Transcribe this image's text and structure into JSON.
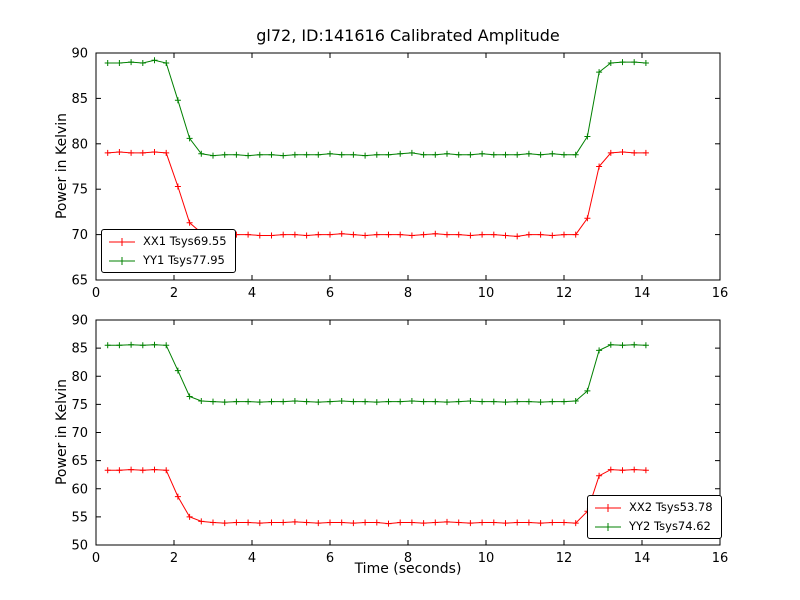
{
  "figure": {
    "title": "gl72, ID:141616 Calibrated Amplitude"
  },
  "chart_data": [
    {
      "type": "line",
      "title": "gl72, ID:141616 Calibrated Amplitude",
      "xlabel": "",
      "ylabel": "Power in Kelvin",
      "xlim": [
        0,
        16
      ],
      "ylim": [
        65,
        90
      ],
      "xticks": [
        0,
        2,
        4,
        6,
        8,
        10,
        12,
        14,
        16
      ],
      "yticks": [
        65,
        70,
        75,
        80,
        85,
        90
      ],
      "grid": false,
      "legend_position": "lower-left",
      "marker": "plus",
      "x": [
        0.3,
        0.6,
        0.9,
        1.2,
        1.5,
        1.8,
        2.1,
        2.4,
        2.7,
        3.0,
        3.3,
        3.6,
        3.9,
        4.2,
        4.5,
        4.8,
        5.1,
        5.4,
        5.7,
        6.0,
        6.3,
        6.6,
        6.9,
        7.2,
        7.5,
        7.8,
        8.1,
        8.4,
        8.7,
        9.0,
        9.3,
        9.6,
        9.9,
        10.2,
        10.5,
        10.8,
        11.1,
        11.4,
        11.7,
        12.0,
        12.3,
        12.6,
        12.9,
        13.2,
        13.5,
        13.8,
        14.1
      ],
      "series": [
        {
          "name": "XX1 Tsys69.55",
          "color": "#ff0000",
          "values": [
            79.0,
            79.1,
            79.0,
            79.0,
            79.1,
            79.0,
            75.3,
            71.3,
            70.2,
            70.0,
            69.9,
            70.0,
            70.0,
            69.9,
            69.9,
            70.0,
            70.0,
            69.9,
            70.0,
            70.0,
            70.1,
            70.0,
            69.9,
            70.0,
            70.0,
            70.0,
            69.9,
            70.0,
            70.1,
            70.0,
            70.0,
            69.9,
            70.0,
            70.0,
            69.9,
            69.8,
            70.0,
            70.0,
            69.9,
            70.0,
            70.0,
            71.8,
            77.5,
            79.0,
            79.1,
            79.0,
            79.0
          ]
        },
        {
          "name": "YY1 Tsys77.95",
          "color": "#008000",
          "values": [
            88.9,
            88.9,
            89.0,
            88.9,
            89.2,
            88.9,
            84.8,
            80.6,
            78.9,
            78.7,
            78.8,
            78.8,
            78.7,
            78.8,
            78.8,
            78.7,
            78.8,
            78.8,
            78.8,
            78.9,
            78.8,
            78.8,
            78.7,
            78.8,
            78.8,
            78.9,
            79.0,
            78.8,
            78.8,
            78.9,
            78.8,
            78.8,
            78.9,
            78.8,
            78.8,
            78.8,
            78.9,
            78.8,
            78.9,
            78.8,
            78.8,
            80.8,
            87.9,
            88.9,
            89.0,
            89.0,
            88.9
          ]
        }
      ]
    },
    {
      "type": "line",
      "title": "",
      "xlabel": "Time (seconds)",
      "ylabel": "Power in Kelvin",
      "xlim": [
        0,
        16
      ],
      "ylim": [
        50,
        90
      ],
      "xticks": [
        0,
        2,
        4,
        6,
        8,
        10,
        12,
        14,
        16
      ],
      "yticks": [
        50,
        55,
        60,
        65,
        70,
        75,
        80,
        85,
        90
      ],
      "grid": false,
      "legend_position": "lower-right",
      "marker": "plus",
      "x": [
        0.3,
        0.6,
        0.9,
        1.2,
        1.5,
        1.8,
        2.1,
        2.4,
        2.7,
        3.0,
        3.3,
        3.6,
        3.9,
        4.2,
        4.5,
        4.8,
        5.1,
        5.4,
        5.7,
        6.0,
        6.3,
        6.6,
        6.9,
        7.2,
        7.5,
        7.8,
        8.1,
        8.4,
        8.7,
        9.0,
        9.3,
        9.6,
        9.9,
        10.2,
        10.5,
        10.8,
        11.1,
        11.4,
        11.7,
        12.0,
        12.3,
        12.6,
        12.9,
        13.2,
        13.5,
        13.8,
        14.1
      ],
      "series": [
        {
          "name": "XX2 Tsys53.78",
          "color": "#ff0000",
          "values": [
            63.3,
            63.3,
            63.4,
            63.3,
            63.4,
            63.3,
            58.6,
            55.0,
            54.2,
            54.0,
            53.9,
            54.0,
            54.0,
            53.9,
            54.0,
            54.0,
            54.1,
            54.0,
            53.9,
            54.0,
            54.0,
            53.9,
            54.0,
            54.0,
            53.8,
            54.0,
            54.0,
            53.9,
            54.0,
            54.1,
            54.0,
            53.9,
            54.0,
            54.0,
            53.9,
            54.0,
            54.0,
            53.9,
            54.0,
            54.0,
            53.9,
            56.0,
            62.3,
            63.4,
            63.3,
            63.4,
            63.3
          ]
        },
        {
          "name": "YY2 Tsys74.62",
          "color": "#008000",
          "values": [
            85.5,
            85.5,
            85.6,
            85.5,
            85.6,
            85.5,
            81.0,
            76.4,
            75.6,
            75.5,
            75.4,
            75.5,
            75.5,
            75.4,
            75.5,
            75.5,
            75.6,
            75.5,
            75.4,
            75.5,
            75.6,
            75.5,
            75.5,
            75.4,
            75.5,
            75.5,
            75.6,
            75.5,
            75.5,
            75.4,
            75.5,
            75.6,
            75.5,
            75.5,
            75.4,
            75.5,
            75.5,
            75.4,
            75.5,
            75.5,
            75.6,
            77.4,
            84.6,
            85.6,
            85.5,
            85.6,
            85.5
          ]
        }
      ]
    }
  ]
}
